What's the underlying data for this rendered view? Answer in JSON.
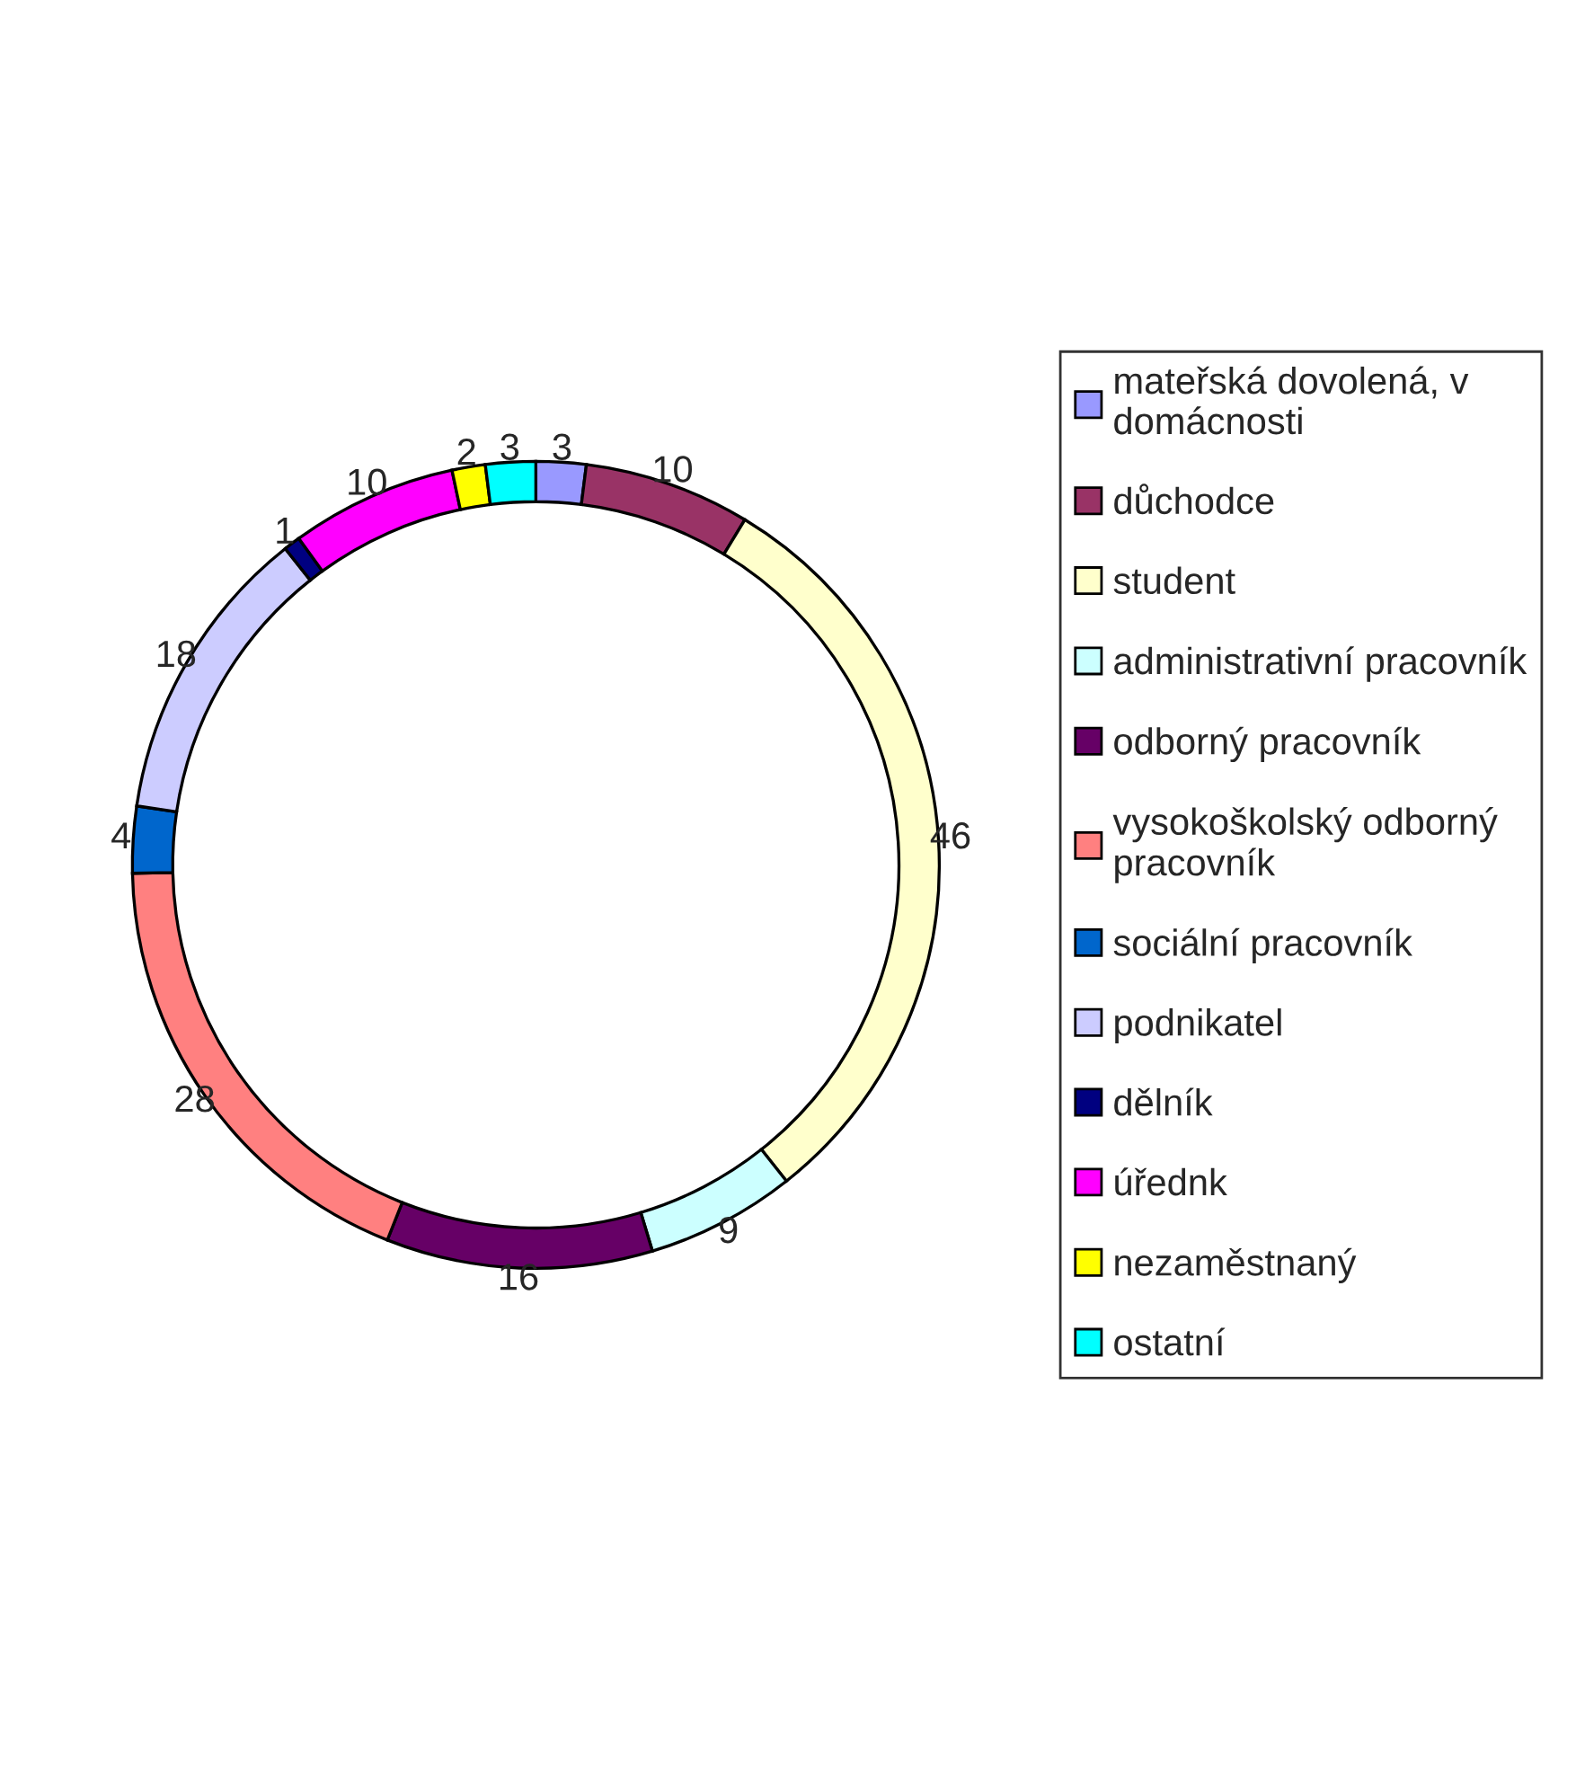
{
  "chart_data": {
    "type": "donut",
    "categories": [
      "mateřská dovolená, v domácnosti",
      "důchodce",
      "student",
      "administrativní pracovník",
      "odborný pracovník",
      "vysokoškolský odborný pracovník",
      "sociální pracovník",
      "podnikatel",
      "dělník",
      "úřednk",
      "nezaměstnaný",
      "ostatní"
    ],
    "values": [
      3,
      10,
      46,
      9,
      16,
      28,
      4,
      18,
      1,
      10,
      2,
      3
    ],
    "colors": [
      "#9999ff",
      "#993366",
      "#ffffcc",
      "#ccffff",
      "#660066",
      "#ff8080",
      "#0066cc",
      "#ccccff",
      "#000080",
      "#ff00ff",
      "#ffff00",
      "#00ffff"
    ],
    "data_labels": true,
    "legend": "right"
  }
}
